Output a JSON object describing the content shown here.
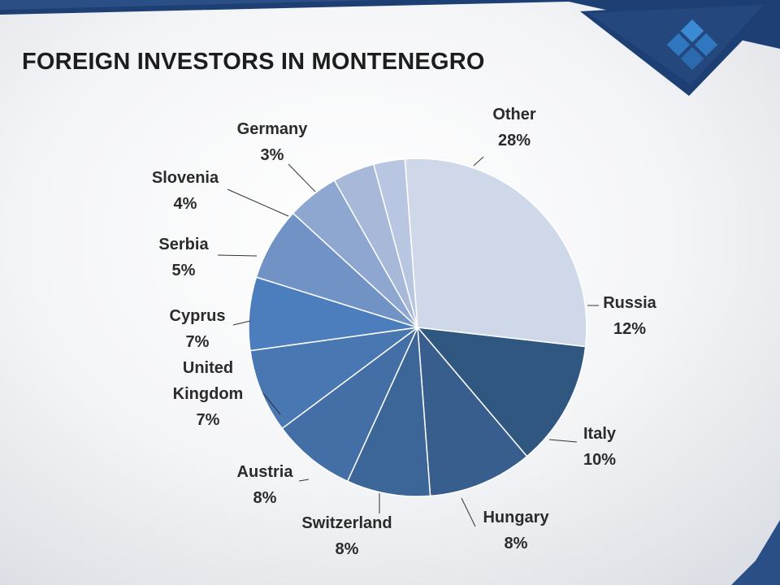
{
  "slide": {
    "title": "FOREIGN INVESTORS IN MONTENEGRO",
    "colors": {
      "frame": "#1e3f73",
      "background_light": "#ffffff",
      "background_grey": "#e9ebef",
      "logo": "#2e7bc4"
    },
    "logo_icon": "diamond-grid-logo-icon"
  },
  "chart_data": {
    "type": "pie",
    "title": "FOREIGN INVESTORS IN MONTENEGRO",
    "start_angle_deg": 0,
    "direction": "clockwise",
    "legend": "none",
    "slices": [
      {
        "label": [
          "Russia"
        ],
        "percent_label": "12%",
        "value": 12,
        "color": "#30577f"
      },
      {
        "label": [
          "Italy"
        ],
        "percent_label": "10%",
        "value": 10,
        "color": "#385e8d"
      },
      {
        "label": [
          "Hungary"
        ],
        "percent_label": "8%",
        "value": 8,
        "color": "#3d6698"
      },
      {
        "label": [
          "Switzerland"
        ],
        "percent_label": "8%",
        "value": 8,
        "color": "#436fa6"
      },
      {
        "label": [
          "Austria"
        ],
        "percent_label": "8%",
        "value": 8,
        "color": "#4877b1"
      },
      {
        "label": [
          "United",
          "Kingdom"
        ],
        "percent_label": "7%",
        "value": 7,
        "color": "#4c7ebe"
      },
      {
        "label": [
          "Cyprus"
        ],
        "percent_label": "7%",
        "value": 7,
        "color": "#7092c5"
      },
      {
        "label": [
          "Serbia"
        ],
        "percent_label": "5%",
        "value": 5,
        "color": "#8ea7d0"
      },
      {
        "label": [
          "Slovenia"
        ],
        "percent_label": "4%",
        "value": 4,
        "color": "#a7b8d9"
      },
      {
        "label": [
          "Germany"
        ],
        "percent_label": "3%",
        "value": 3,
        "color": "#b8c6e1"
      },
      {
        "label": [
          "Other"
        ],
        "percent_label": "28%",
        "value": 28,
        "color": "#cfd8e8"
      }
    ]
  }
}
